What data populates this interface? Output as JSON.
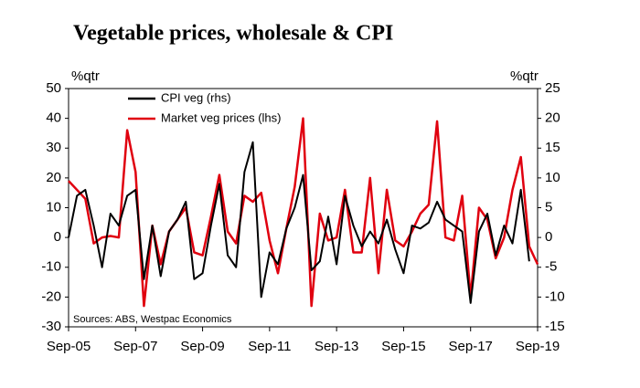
{
  "chart_data": {
    "type": "line",
    "title": "Vegetable prices, wholesale & CPI",
    "y_label": "%qtr",
    "y2_label": "%qtr",
    "source": "Sources: ABS, Westpac Economics",
    "categories": [
      "Sep-05",
      null,
      null,
      null,
      null,
      null,
      null,
      null,
      "Sep-07",
      null,
      null,
      null,
      null,
      null,
      null,
      null,
      "Sep-09",
      null,
      null,
      null,
      null,
      null,
      null,
      null,
      "Sep-11",
      null,
      null,
      null,
      null,
      null,
      null,
      null,
      "Sep-13",
      null,
      null,
      null,
      null,
      null,
      null,
      null,
      "Sep-15",
      null,
      null,
      null,
      null,
      null,
      null,
      null,
      "Sep-17",
      null,
      null,
      null,
      null,
      null,
      null,
      null,
      "Sep-19"
    ],
    "series": [
      {
        "name": "CPI veg (rhs)",
        "color": "#000000",
        "axis": "y2",
        "values": [
          0,
          7,
          8,
          2,
          -5,
          4,
          2,
          7,
          8,
          -7,
          2,
          -6.5,
          1,
          3,
          6,
          -7,
          -6,
          2,
          9,
          -3,
          -5,
          11,
          16,
          -10,
          -2.5,
          -4.5,
          1.5,
          5,
          10.5,
          -5.5,
          -4,
          3.5,
          -4.5,
          7,
          2,
          -1.5,
          1,
          -1,
          3,
          -2,
          -6,
          2,
          1.5,
          2.5,
          6,
          3,
          2,
          1,
          -11,
          1,
          4,
          -3,
          2,
          -1,
          8,
          -4,
          null
        ]
      },
      {
        "name": "Market veg prices (lhs)",
        "color": "#e0000f",
        "values": [
          19,
          16,
          13,
          -2,
          0,
          0.5,
          0,
          36,
          22,
          -23,
          4,
          -9,
          2,
          6,
          10,
          -5,
          -6,
          7,
          21,
          2,
          -2,
          14,
          12,
          15,
          -1,
          -12,
          3,
          17,
          40,
          -23,
          8,
          -1,
          0,
          16,
          -5,
          -5,
          20,
          -12,
          16,
          -1,
          -3,
          2,
          8,
          11,
          39,
          0,
          -1,
          14,
          -20,
          10,
          6,
          -7,
          0,
          16,
          27,
          -3,
          -9
        ]
      }
    ],
    "ylim": [
      -30,
      50
    ],
    "yticks": [
      -30,
      -20,
      -10,
      0,
      10,
      20,
      30,
      40,
      50
    ],
    "y2lim": [
      -15,
      25
    ],
    "y2ticks": [
      -15,
      -10,
      -5,
      0,
      5,
      10,
      15,
      20,
      25
    ],
    "grid": false,
    "legend": "upper left"
  }
}
